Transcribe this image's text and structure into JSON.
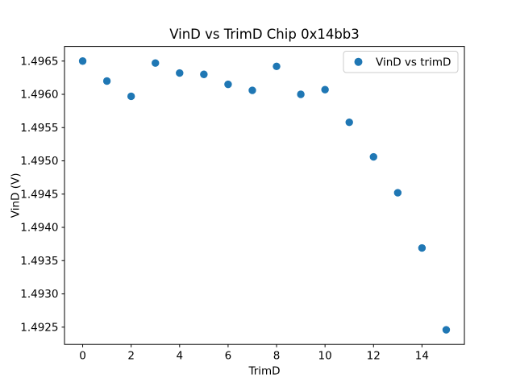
{
  "figure": {
    "background": "#ffffff",
    "axis_color": "#000000"
  },
  "chart_data": {
    "type": "scatter",
    "title": "VinD vs TrimD Chip 0x14bb3",
    "xlabel": "TrimD",
    "ylabel": "VinD (V)",
    "legend": {
      "label": "VinD vs trimD",
      "position": "upper right",
      "marker_icon": "filled-circle",
      "border_color": "#cccccc"
    },
    "marker_color": "#1f77b4",
    "grid": false,
    "x": [
      0,
      1,
      2,
      3,
      4,
      5,
      6,
      7,
      8,
      9,
      10,
      11,
      12,
      13,
      14,
      15
    ],
    "y": [
      1.4965,
      1.4962,
      1.49597,
      1.49647,
      1.49632,
      1.4963,
      1.49615,
      1.49606,
      1.49642,
      1.496,
      1.49607,
      1.49558,
      1.49506,
      1.49452,
      1.49369,
      1.49246
    ],
    "xlim": [
      -0.75,
      15.75
    ],
    "ylim": [
      1.49224,
      1.49672
    ],
    "xticks": {
      "values": [
        0,
        2,
        4,
        6,
        8,
        10,
        12,
        14
      ],
      "labels": [
        "0",
        "2",
        "4",
        "6",
        "8",
        "10",
        "12",
        "14"
      ]
    },
    "yticks": {
      "values": [
        1.4925,
        1.493,
        1.4935,
        1.494,
        1.4945,
        1.495,
        1.4955,
        1.496,
        1.4965
      ],
      "labels": [
        "1.4925",
        "1.4930",
        "1.4935",
        "1.4940",
        "1.4945",
        "1.4950",
        "1.4955",
        "1.4960",
        "1.4965"
      ]
    }
  }
}
